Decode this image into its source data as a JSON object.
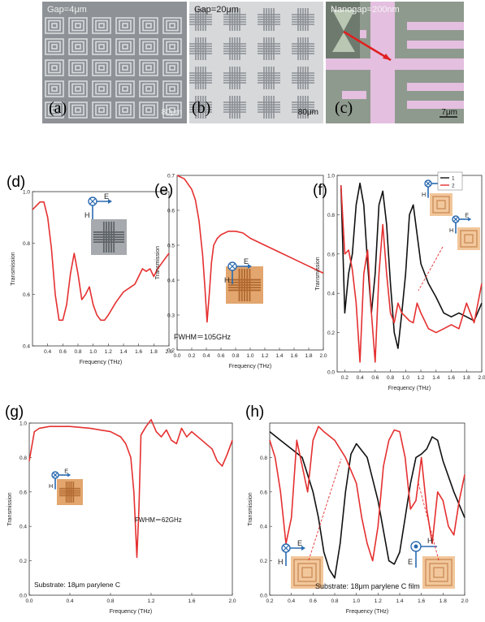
{
  "micrographs": [
    {
      "label": "(a)",
      "gap": "Gap=4μm",
      "scale": "80μm"
    },
    {
      "label": "(b)",
      "gap": "Gap=20μm",
      "scale": "80μm"
    },
    {
      "label": "(c)",
      "gap": "Nanogap=200nm",
      "scale": "7μm"
    }
  ],
  "chart_data": [
    {
      "id": "d",
      "type": "line",
      "panel_label": "(d)",
      "xlabel": "Frequency (THz)",
      "ylabel": "Transmission",
      "xlim": [
        0.2,
        2.0
      ],
      "ylim": [
        0.4,
        1.0
      ],
      "xticks": [
        "0.4",
        "0.6",
        "0.8",
        "1.0",
        "1.2",
        "1.4",
        "1.6",
        "1.8",
        "2.0"
      ],
      "yticks": [
        "0.4",
        "0.6",
        "0.8",
        "1.0"
      ],
      "polarization": {
        "e": "E",
        "h": "H"
      },
      "series": [
        {
          "color": "#e53030",
          "x": [
            0.2,
            0.3,
            0.35,
            0.4,
            0.45,
            0.5,
            0.55,
            0.6,
            0.65,
            0.7,
            0.75,
            0.8,
            0.85,
            0.9,
            0.95,
            1.0,
            1.05,
            1.1,
            1.15,
            1.2,
            1.3,
            1.4,
            1.5,
            1.55,
            1.6,
            1.65,
            1.7,
            1.75,
            1.8,
            1.85,
            1.9,
            1.95,
            2.0
          ],
          "y": [
            0.93,
            0.96,
            0.96,
            0.9,
            0.78,
            0.6,
            0.5,
            0.5,
            0.56,
            0.68,
            0.76,
            0.68,
            0.58,
            0.6,
            0.63,
            0.56,
            0.52,
            0.5,
            0.5,
            0.52,
            0.57,
            0.61,
            0.63,
            0.64,
            0.67,
            0.7,
            0.69,
            0.7,
            0.67,
            0.7,
            0.72,
            0.74,
            0.76
          ]
        }
      ]
    },
    {
      "id": "e",
      "type": "line",
      "panel_label": "(e)",
      "xlabel": "Frequency (THz)",
      "ylabel": "Transmission",
      "xlim": [
        0.0,
        2.0
      ],
      "ylim": [
        0.2,
        0.7
      ],
      "xticks": [
        "0.0",
        "0.2",
        "0.4",
        "0.6",
        "0.8",
        "1.0",
        "1.2",
        "1.4",
        "1.6",
        "1.8",
        "2.0"
      ],
      "yticks": [
        "0.2",
        "0.3",
        "0.4",
        "0.5",
        "0.6",
        "0.7"
      ],
      "annotation": "FWHM＝105GHz",
      "polarization": {
        "e": "E",
        "h": "H"
      },
      "series": [
        {
          "color": "#e53030",
          "x": [
            0.0,
            0.1,
            0.2,
            0.25,
            0.3,
            0.35,
            0.38,
            0.41,
            0.44,
            0.47,
            0.5,
            0.55,
            0.6,
            0.7,
            0.8,
            0.9,
            1.0,
            1.2,
            1.4,
            1.6,
            1.8,
            2.0
          ],
          "y": [
            0.7,
            0.69,
            0.66,
            0.63,
            0.57,
            0.47,
            0.38,
            0.28,
            0.36,
            0.45,
            0.5,
            0.52,
            0.53,
            0.54,
            0.54,
            0.535,
            0.52,
            0.5,
            0.48,
            0.46,
            0.44,
            0.42
          ]
        }
      ]
    },
    {
      "id": "f",
      "type": "line",
      "panel_label": "(f)",
      "xlabel": "Frequency (THz)",
      "ylabel": "Transmission",
      "xlim": [
        0.1,
        2.0
      ],
      "ylim": [
        0.0,
        1.0
      ],
      "xticks": [
        "0.2",
        "0.4",
        "0.6",
        "0.8",
        "1.0",
        "1.2",
        "1.4",
        "1.6",
        "1.8",
        "2.0"
      ],
      "yticks": [
        "0.0",
        "0.2",
        "0.4",
        "0.6",
        "0.8",
        "1.0"
      ],
      "polarization": {
        "e": "E",
        "h": "H"
      },
      "legend": [
        "1",
        "2"
      ],
      "series": [
        {
          "name": "1",
          "color": "#111111",
          "x": [
            0.15,
            0.2,
            0.25,
            0.3,
            0.35,
            0.4,
            0.45,
            0.5,
            0.55,
            0.6,
            0.65,
            0.7,
            0.75,
            0.8,
            0.85,
            0.9,
            0.95,
            1.0,
            1.05,
            1.1,
            1.15,
            1.2,
            1.3,
            1.4,
            1.5,
            1.6,
            1.7,
            1.8,
            1.9,
            2.0
          ],
          "y": [
            0.95,
            0.3,
            0.5,
            0.6,
            0.85,
            0.96,
            0.85,
            0.55,
            0.3,
            0.5,
            0.85,
            0.92,
            0.75,
            0.45,
            0.2,
            0.12,
            0.3,
            0.5,
            0.8,
            0.85,
            0.7,
            0.55,
            0.45,
            0.38,
            0.3,
            0.28,
            0.3,
            0.28,
            0.26,
            0.35
          ]
        },
        {
          "name": "2",
          "color": "#e53030",
          "x": [
            0.15,
            0.2,
            0.25,
            0.3,
            0.35,
            0.4,
            0.45,
            0.5,
            0.55,
            0.6,
            0.65,
            0.7,
            0.75,
            0.8,
            0.85,
            0.9,
            0.95,
            1.0,
            1.05,
            1.1,
            1.15,
            1.2,
            1.3,
            1.4,
            1.5,
            1.6,
            1.7,
            1.8,
            1.9,
            2.0
          ],
          "y": [
            0.95,
            0.6,
            0.62,
            0.52,
            0.35,
            0.05,
            0.5,
            0.62,
            0.3,
            0.05,
            0.5,
            0.75,
            0.5,
            0.3,
            0.25,
            0.35,
            0.3,
            0.28,
            0.26,
            0.25,
            0.35,
            0.3,
            0.22,
            0.2,
            0.22,
            0.24,
            0.22,
            0.35,
            0.25,
            0.45
          ]
        }
      ]
    },
    {
      "id": "g",
      "type": "line",
      "panel_label": "(g)",
      "xlabel": "Frequency (THz)",
      "ylabel": "Transmission",
      "xlim": [
        0.0,
        2.0
      ],
      "ylim": [
        0.0,
        1.0
      ],
      "xticks": [
        "0.0",
        "0.4",
        "0.8",
        "1.2",
        "1.6",
        "2.0"
      ],
      "yticks": [
        "0.0",
        "0.2",
        "0.4",
        "0.6",
        "0.8",
        "1.0"
      ],
      "annotation": "FWHM＝62GHz",
      "substrate": "Substrate: 18μm parylene C",
      "polarization": {
        "e": "E",
        "h": "H"
      },
      "series": [
        {
          "color": "#e53030",
          "x": [
            0.0,
            0.05,
            0.1,
            0.2,
            0.4,
            0.6,
            0.8,
            0.9,
            0.95,
            1.0,
            1.03,
            1.06,
            1.08,
            1.1,
            1.15,
            1.2,
            1.25,
            1.3,
            1.35,
            1.4,
            1.45,
            1.5,
            1.55,
            1.6,
            1.7,
            1.8,
            1.85,
            1.9,
            1.95,
            2.0
          ],
          "y": [
            0.78,
            0.95,
            0.97,
            0.98,
            0.98,
            0.97,
            0.95,
            0.92,
            0.88,
            0.8,
            0.6,
            0.22,
            0.5,
            0.93,
            0.98,
            1.02,
            0.95,
            0.92,
            0.96,
            0.9,
            0.88,
            0.97,
            0.92,
            0.95,
            0.9,
            0.85,
            0.78,
            0.75,
            0.82,
            0.9
          ]
        }
      ]
    },
    {
      "id": "h",
      "type": "line",
      "panel_label": "(h)",
      "xlabel": "Frequency (THz)",
      "ylabel": "Transmission",
      "xlim": [
        0.2,
        2.0
      ],
      "ylim": [
        0.0,
        1.0
      ],
      "xticks": [
        "0.2",
        "0.4",
        "0.6",
        "0.8",
        "1.0",
        "1.2",
        "1.4",
        "1.6",
        "1.8",
        "2.0"
      ],
      "yticks": [
        "0.0",
        "0.2",
        "0.4",
        "0.6",
        "0.8"
      ],
      "substrate": "Substrate: 18μm parylene C film",
      "polarization": {
        "e": "E",
        "h": "H"
      },
      "series": [
        {
          "color": "#111111",
          "x": [
            0.2,
            0.3,
            0.4,
            0.5,
            0.6,
            0.65,
            0.7,
            0.75,
            0.8,
            0.85,
            0.9,
            0.95,
            1.0,
            1.1,
            1.2,
            1.3,
            1.35,
            1.4,
            1.45,
            1.5,
            1.55,
            1.6,
            1.65,
            1.7,
            1.75,
            1.8,
            1.9,
            2.0
          ],
          "y": [
            0.95,
            0.9,
            0.85,
            0.8,
            0.6,
            0.45,
            0.25,
            0.15,
            0.1,
            0.3,
            0.6,
            0.82,
            0.88,
            0.8,
            0.55,
            0.2,
            0.18,
            0.25,
            0.45,
            0.65,
            0.8,
            0.82,
            0.85,
            0.92,
            0.9,
            0.78,
            0.6,
            0.45
          ]
        },
        {
          "color": "#e53030",
          "x": [
            0.2,
            0.25,
            0.3,
            0.35,
            0.4,
            0.45,
            0.5,
            0.55,
            0.6,
            0.65,
            0.7,
            0.8,
            0.9,
            1.0,
            1.05,
            1.1,
            1.15,
            1.2,
            1.25,
            1.3,
            1.35,
            1.4,
            1.45,
            1.5,
            1.55,
            1.6,
            1.65,
            1.7,
            1.75,
            1.8,
            1.85,
            1.9,
            1.95,
            2.0
          ],
          "y": [
            0.9,
            0.8,
            0.6,
            0.3,
            0.45,
            0.9,
            0.75,
            0.6,
            0.9,
            0.98,
            0.95,
            0.9,
            0.8,
            0.65,
            0.45,
            0.3,
            0.2,
            0.4,
            0.75,
            0.9,
            0.96,
            0.95,
            0.8,
            0.5,
            0.55,
            0.8,
            0.5,
            0.3,
            0.6,
            0.55,
            0.4,
            0.35,
            0.55,
            0.7
          ]
        }
      ]
    }
  ]
}
